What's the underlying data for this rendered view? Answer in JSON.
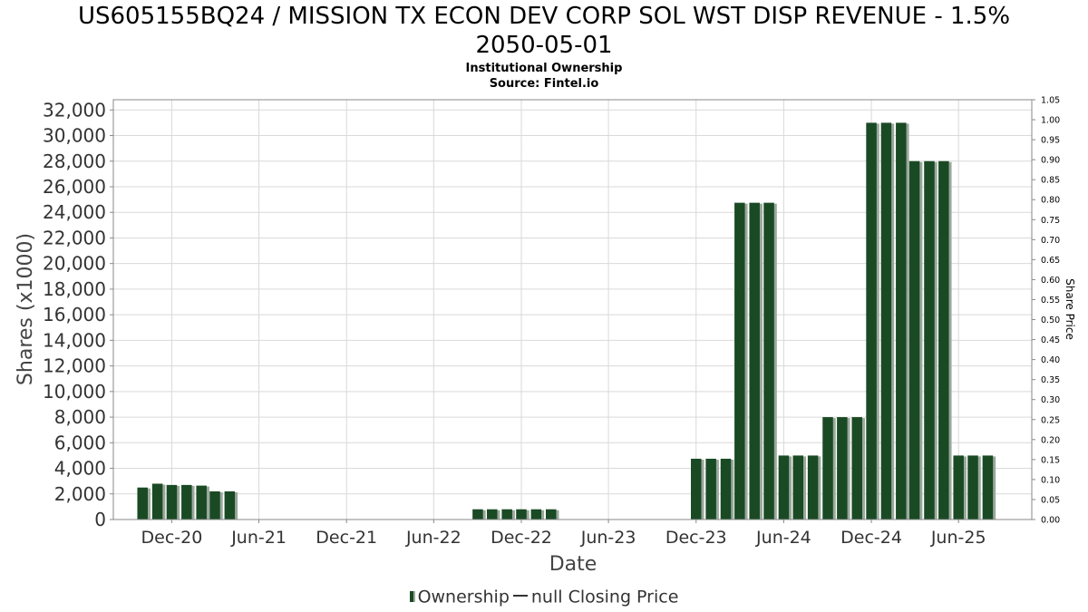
{
  "title_line1": "US605155BQ24 / MISSION TX ECON DEV CORP SOL WST DISP REVENUE - 1.5%",
  "title_line2": "2050-05-01",
  "subtitle_line1": "Institutional Ownership",
  "subtitle_line2": "Source: Fintel.io",
  "legend": {
    "ownership": "Ownership",
    "price": "null Closing Price"
  },
  "colors": {
    "bar": "#1a4a24",
    "bar_shadow": "#9aa89c",
    "grid": "#d9d9d9"
  },
  "chart_data": {
    "type": "bar",
    "xlabel": "Date",
    "ylabel": "Shares (x1000)",
    "y2label": "Share Price",
    "ylim": [
      0,
      32800
    ],
    "y2lim": [
      0,
      1.05
    ],
    "xlim": [
      "2020-08-01",
      "2025-11-01"
    ],
    "yticks": [
      "0",
      "2,000",
      "4,000",
      "6,000",
      "8,000",
      "10,000",
      "12,000",
      "14,000",
      "16,000",
      "18,000",
      "20,000",
      "22,000",
      "24,000",
      "26,000",
      "28,000",
      "30,000",
      "32,000"
    ],
    "y2ticks": [
      "0.00",
      "0.05",
      "0.10",
      "0.15",
      "0.20",
      "0.25",
      "0.30",
      "0.35",
      "0.40",
      "0.45",
      "0.50",
      "0.55",
      "0.60",
      "0.65",
      "0.70",
      "0.75",
      "0.80",
      "0.85",
      "0.90",
      "0.95",
      "1.00",
      "1.05"
    ],
    "xticks": [
      {
        "label": "Dec-20",
        "date": "2020-12-01"
      },
      {
        "label": "Jun-21",
        "date": "2021-06-01"
      },
      {
        "label": "Dec-21",
        "date": "2021-12-01"
      },
      {
        "label": "Jun-22",
        "date": "2022-06-01"
      },
      {
        "label": "Dec-22",
        "date": "2022-12-01"
      },
      {
        "label": "Jun-23",
        "date": "2023-06-01"
      },
      {
        "label": "Dec-23",
        "date": "2023-12-01"
      },
      {
        "label": "Jun-24",
        "date": "2024-06-01"
      },
      {
        "label": "Dec-24",
        "date": "2024-12-01"
      },
      {
        "label": "Jun-25",
        "date": "2025-06-01"
      }
    ],
    "series": [
      {
        "name": "Ownership",
        "points": [
          {
            "x": "2020-10-01",
            "y": 2500
          },
          {
            "x": "2020-11-01",
            "y": 2800
          },
          {
            "x": "2020-12-01",
            "y": 2700
          },
          {
            "x": "2021-01-01",
            "y": 2700
          },
          {
            "x": "2021-02-01",
            "y": 2650
          },
          {
            "x": "2021-03-01",
            "y": 2200
          },
          {
            "x": "2021-04-01",
            "y": 2200
          },
          {
            "x": "2022-09-01",
            "y": 800
          },
          {
            "x": "2022-10-01",
            "y": 800
          },
          {
            "x": "2022-11-01",
            "y": 800
          },
          {
            "x": "2022-12-01",
            "y": 800
          },
          {
            "x": "2023-01-01",
            "y": 800
          },
          {
            "x": "2023-02-01",
            "y": 800
          },
          {
            "x": "2023-12-01",
            "y": 4750
          },
          {
            "x": "2024-01-01",
            "y": 4750
          },
          {
            "x": "2024-02-01",
            "y": 4750
          },
          {
            "x": "2024-03-01",
            "y": 24750
          },
          {
            "x": "2024-04-01",
            "y": 24750
          },
          {
            "x": "2024-05-01",
            "y": 24750
          },
          {
            "x": "2024-06-01",
            "y": 5000
          },
          {
            "x": "2024-07-01",
            "y": 5000
          },
          {
            "x": "2024-08-01",
            "y": 5000
          },
          {
            "x": "2024-09-01",
            "y": 8000
          },
          {
            "x": "2024-10-01",
            "y": 8000
          },
          {
            "x": "2024-11-01",
            "y": 8000
          },
          {
            "x": "2024-12-01",
            "y": 31000
          },
          {
            "x": "2025-01-01",
            "y": 31000
          },
          {
            "x": "2025-02-01",
            "y": 31000
          },
          {
            "x": "2025-03-01",
            "y": 28000
          },
          {
            "x": "2025-04-01",
            "y": 28000
          },
          {
            "x": "2025-05-01",
            "y": 28000
          },
          {
            "x": "2025-06-01",
            "y": 5000
          },
          {
            "x": "2025-07-01",
            "y": 5000
          },
          {
            "x": "2025-08-01",
            "y": 5000
          }
        ]
      }
    ],
    "grid": true,
    "legend_position": "bottom"
  }
}
